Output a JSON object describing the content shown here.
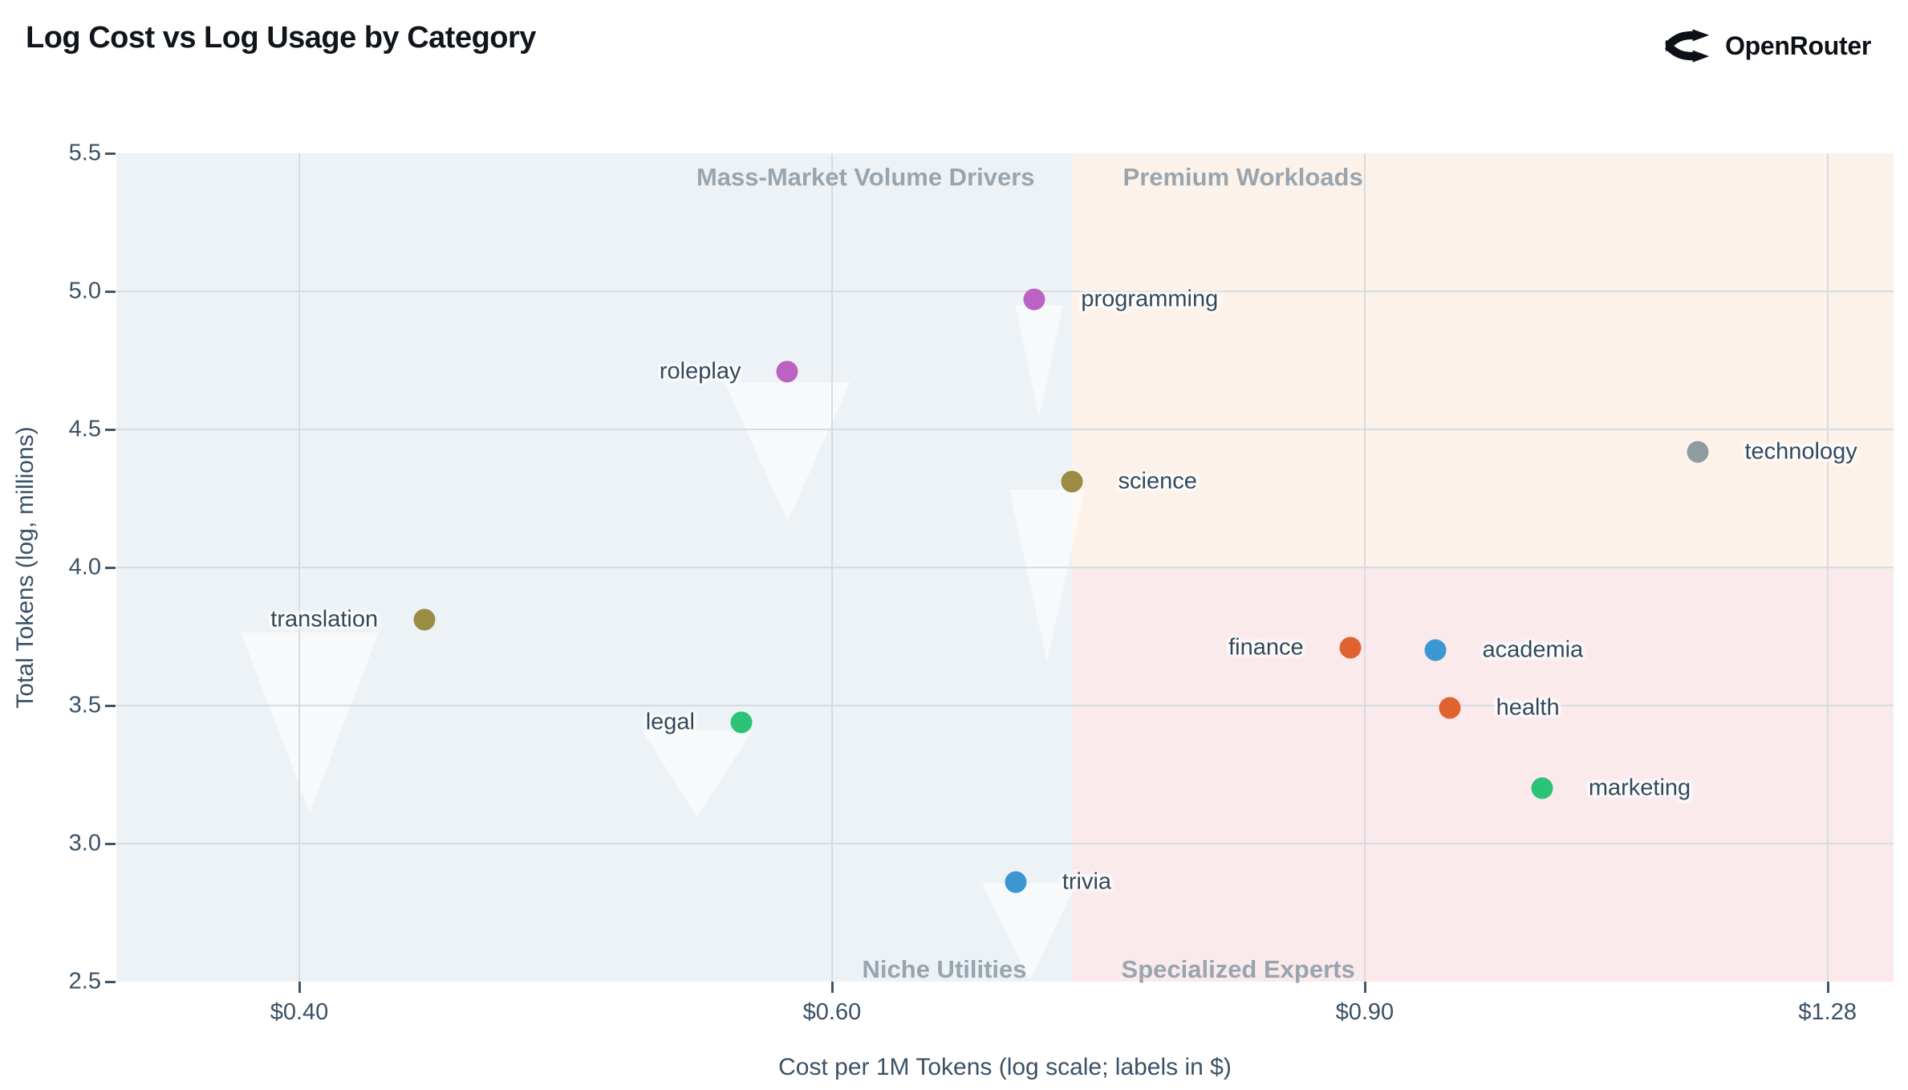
{
  "header": {
    "title": "Log Cost vs Log Usage by Category",
    "brand": "OpenRouter"
  },
  "chart_data": {
    "type": "scatter",
    "title": "Log Cost vs Log Usage by Category",
    "xlabel": "Cost per 1M Tokens (log scale; labels in $)",
    "ylabel": "Total Tokens (log, millions)",
    "x_scale": "log",
    "y_scale": "linear",
    "xlim": [
      0.348,
      1.346
    ],
    "ylim": [
      2.5,
      5.5
    ],
    "grid": true,
    "x_ticks": [
      {
        "value": 0.4,
        "label": "$0.40"
      },
      {
        "value": 0.6,
        "label": "$0.60"
      },
      {
        "value": 0.9,
        "label": "$0.90"
      },
      {
        "value": 1.28,
        "label": "$1.28"
      }
    ],
    "y_ticks": [
      {
        "value": 5.5,
        "label": "5.5"
      },
      {
        "value": 5.0,
        "label": "5.0"
      },
      {
        "value": 4.5,
        "label": "4.5"
      },
      {
        "value": 4.0,
        "label": "4.0"
      },
      {
        "value": 3.5,
        "label": "3.5"
      },
      {
        "value": 3.0,
        "label": "3.0"
      },
      {
        "value": 2.5,
        "label": "2.5"
      }
    ],
    "quadrants": {
      "split_cost": 0.72,
      "split_log_tokens": 4.0,
      "label_color": "#98a5af",
      "regions": [
        {
          "name": "top-left",
          "label": "Mass-Market Volume Drivers",
          "color": "#edf2f6"
        },
        {
          "name": "top-right",
          "label": "Premium Workloads",
          "color": "#fdf2e9"
        },
        {
          "name": "bottom-left",
          "label": "Niche Utilities",
          "color": "#edf2f6"
        },
        {
          "name": "bottom-right",
          "label": "Specialized Experts",
          "color": "#faeaec"
        }
      ]
    },
    "points": [
      {
        "name": "programming",
        "cost": 0.7,
        "log_tokens": 4.97,
        "color": "#bb62c3",
        "label_side": "right"
      },
      {
        "name": "roleplay",
        "cost": 0.58,
        "log_tokens": 4.71,
        "color": "#bb62c3",
        "label_side": "left"
      },
      {
        "name": "science",
        "cost": 0.72,
        "log_tokens": 4.31,
        "color": "#9c8b43",
        "label_side": "right"
      },
      {
        "name": "technology",
        "cost": 1.16,
        "log_tokens": 4.42,
        "color": "#8e9ba1",
        "label_side": "right"
      },
      {
        "name": "translation",
        "cost": 0.44,
        "log_tokens": 3.81,
        "color": "#9c8b43",
        "label_side": "left"
      },
      {
        "name": "finance",
        "cost": 0.89,
        "log_tokens": 3.71,
        "color": "#e0622f",
        "label_side": "left"
      },
      {
        "name": "academia",
        "cost": 0.95,
        "log_tokens": 3.7,
        "color": "#3b96d2",
        "label_side": "right"
      },
      {
        "name": "health",
        "cost": 0.96,
        "log_tokens": 3.49,
        "color": "#e0622f",
        "label_side": "right"
      },
      {
        "name": "legal",
        "cost": 0.56,
        "log_tokens": 3.44,
        "color": "#2cc377",
        "label_side": "left"
      },
      {
        "name": "marketing",
        "cost": 1.03,
        "log_tokens": 3.2,
        "color": "#2cc377",
        "label_side": "right"
      },
      {
        "name": "trivia",
        "cost": 0.69,
        "log_tokens": 2.86,
        "color": "#3b96d2",
        "label_side": "right"
      }
    ]
  }
}
